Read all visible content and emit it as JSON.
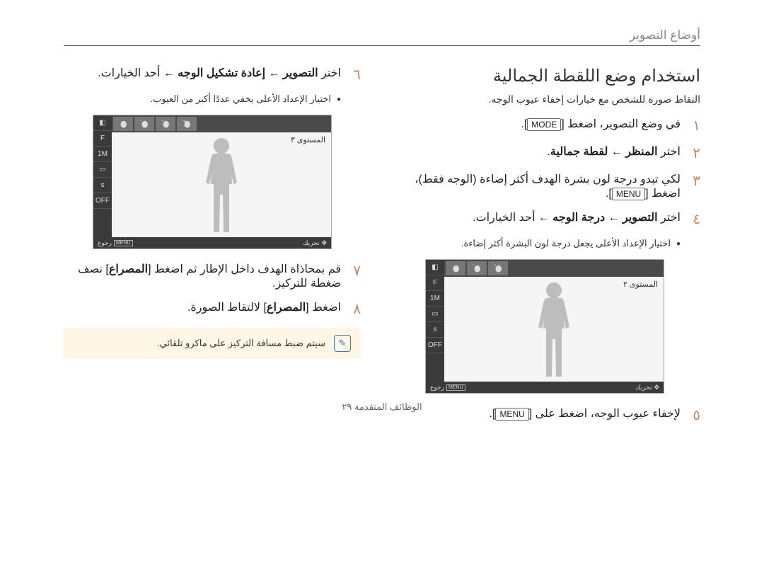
{
  "header": {
    "breadcrumb": "أوضاع التصوير"
  },
  "title": "استخدام وضع اللقطة الجمالية",
  "subtitle": "التقاط صورة للشخص مع خيارات إخفاء عيوب الوجه.",
  "steps_right": [
    {
      "num": "١",
      "html": "في وضع التصوير، اضغط [<span class='mode-tag'>MODE</span>]."
    },
    {
      "num": "٢",
      "html": "اختر <b>المنظر ← لقطة جمالية</b>."
    },
    {
      "num": "٣",
      "html": "لكي تبدو درجة لون بشرة الهدف أكثر إضاءة (الوجه فقط)، اضغط [<span class='mode-tag'>MENU</span>]."
    },
    {
      "num": "٤",
      "html": "اختر <b>التصوير ← درجة الوجه</b> ← أحد الخيارات.",
      "bullet": "اختيار الإعداد الأعلى يجعل درجة لون البشرة أكثر إضاءة."
    },
    {
      "num": "٥",
      "html": "لإخفاء عيوب الوجه، اضغط على [<span class='mode-tag'>MENU</span>]."
    }
  ],
  "steps_left": [
    {
      "num": "٦",
      "html": "اختر <b>التصوير ← إعادة تشكيل الوجه</b> ← أحد الخيارات.",
      "bullet": "اختيار الإعداد الأعلى يخفي عددًا أكبر من العيوب."
    },
    {
      "num": "٧",
      "html": "قم بمحاذاة الهدف داخل الإطار ثم اضغط [<b>المصراع</b>] نصف ضغطة للتركيز."
    },
    {
      "num": "٨",
      "html": "اضغط [<b>المصراع</b>] لالتقاط الصورة."
    }
  ],
  "screen1": {
    "level_label": "المستوى",
    "level_value": "٢",
    "footer_move": "تحريك",
    "footer_back": "رجوع",
    "footer_menu": "MENU",
    "tab_count": 3,
    "side_icons": [
      "◧",
      "F",
      "1M",
      "▭",
      "s",
      "OFF"
    ]
  },
  "screen2": {
    "level_label": "المستوى",
    "level_value": "٣",
    "footer_move": "تحريك",
    "footer_back": "رجوع",
    "footer_menu": "MENU",
    "tab_count": 4,
    "side_icons": [
      "◧",
      "F",
      "1M",
      "▭",
      "s",
      "OFF"
    ]
  },
  "note": "سيتم ضبط مسافة التركيز على ماكرو تلقائي.",
  "footer_text": "الوظائف المتقدمة  ٢٩",
  "colors": {
    "accent": "#d4835a",
    "note_bg": "#fff6e5",
    "note_border": "#3b7bb5"
  }
}
